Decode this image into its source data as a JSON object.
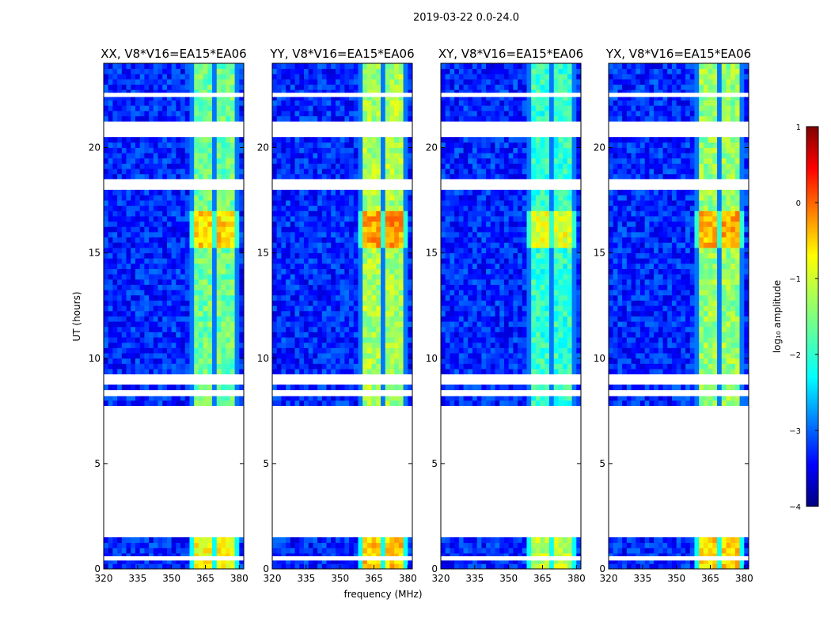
{
  "chart_data": {
    "type": "heatmap",
    "suptitle": "2019-03-22 0.0-24.0",
    "xlabel": "frequency (MHz)",
    "ylabel": "UT (hours)",
    "xlim": [
      320,
      382
    ],
    "ylim": [
      0,
      24
    ],
    "xticks": [
      320,
      335,
      350,
      365,
      380
    ],
    "yticks": [
      0,
      5,
      10,
      15,
      20
    ],
    "colorbar": {
      "label": "log₁₀ amplitude",
      "colormap": "jet",
      "range": [
        -4,
        1
      ],
      "ticks": [
        1,
        0,
        -1,
        -2,
        -3,
        -4
      ],
      "tick_labels": [
        "1",
        "0",
        "−1",
        "−2",
        "−3",
        "−4"
      ]
    },
    "strong_band_mhz": [
      359,
      379
    ],
    "flagged_time_ranges_h": [
      [
        0.4,
        0.6
      ],
      [
        1.6,
        7.7
      ],
      [
        8.2,
        8.4
      ],
      [
        8.8,
        9.2
      ],
      [
        18.0,
        18.5
      ],
      [
        20.6,
        21.2
      ],
      [
        22.4,
        22.6
      ]
    ],
    "panels": [
      {
        "title": "XX, V8*V16=EA15*EA06",
        "band_level": -1.6
      },
      {
        "title": "YY, V8*V16=EA15*EA06",
        "band_level": -1.3
      },
      {
        "title": "XY, V8*V16=EA15*EA06",
        "band_level": -1.9
      },
      {
        "title": "YX, V8*V16=EA15*EA06",
        "band_level": -1.4
      }
    ],
    "background_level": -3.2
  }
}
